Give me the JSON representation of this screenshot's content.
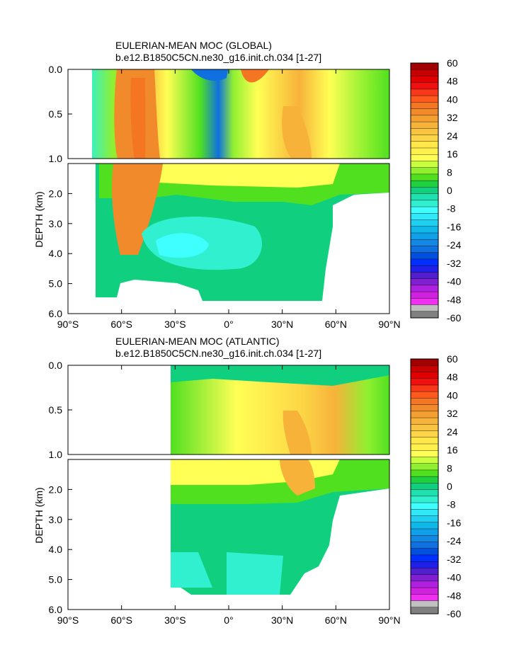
{
  "chart_data": [
    {
      "type": "heatmap",
      "title": "EULERIAN-MEAN MOC (GLOBAL)",
      "subtitle": "b.e12.B1850C5CN.ne30_g16.init.ch.034 [1-27]",
      "ylabel": "DEPTH (km)",
      "xlabel": "",
      "x_ticks": [
        "90°S",
        "60°S",
        "30°S",
        "0°",
        "30°N",
        "60°N",
        "90°N"
      ],
      "x_tick_values": [
        -90,
        -60,
        -30,
        0,
        30,
        60,
        90
      ],
      "y_ticks_upper": [
        "0.0",
        "0.5",
        "1.0"
      ],
      "y_tick_values_upper": [
        0,
        0.5,
        1.0
      ],
      "y_ticks_lower": [
        "2.0",
        "3.0",
        "4.0",
        "5.0",
        "6.0"
      ],
      "y_tick_values_lower": [
        2,
        3,
        4,
        5,
        6
      ],
      "xlim": [
        -90,
        90
      ],
      "ylim": [
        6,
        0
      ],
      "ocean_lat_range": [
        -78,
        90
      ],
      "grid": false,
      "legend": "right colorbar"
    },
    {
      "type": "heatmap",
      "title": "EULERIAN-MEAN MOC (ATLANTIC)",
      "subtitle": "b.e12.B1850C5CN.ne30_g16.init.ch.034 [1-27]",
      "ylabel": "DEPTH (km)",
      "xlabel": "",
      "x_ticks": [
        "90°S",
        "60°S",
        "30°S",
        "0°",
        "30°N",
        "60°N",
        "90°N"
      ],
      "x_tick_values": [
        -90,
        -60,
        -30,
        0,
        30,
        60,
        90
      ],
      "y_ticks_upper": [
        "0.0",
        "0.5",
        "1.0"
      ],
      "y_tick_values_upper": [
        0,
        0.5,
        1.0
      ],
      "y_ticks_lower": [
        "2.0",
        "3.0",
        "4.0",
        "5.0",
        "6.0"
      ],
      "y_tick_values_lower": [
        2,
        3,
        4,
        5,
        6
      ],
      "xlim": [
        -90,
        90
      ],
      "ylim": [
        6,
        0
      ],
      "ocean_lat_range": [
        -33,
        90
      ],
      "grid": false,
      "legend": "right colorbar"
    }
  ],
  "colorbar": {
    "labels": [
      "60",
      "48",
      "40",
      "32",
      "24",
      "16",
      "8",
      "0",
      "-8",
      "-16",
      "-24",
      "-32",
      "-40",
      "-48",
      "-60"
    ],
    "colors": [
      "#a00000",
      "#c80000",
      "#e00000",
      "#f01010",
      "#f83818",
      "#ff5a1e",
      "#f47522",
      "#f08a2a",
      "#f4a031",
      "#f7b23a",
      "#f9c441",
      "#fcd646",
      "#ffe84a",
      "#fff04d",
      "#ffff55",
      "#c8ff40",
      "#90f030",
      "#50e020",
      "#20d040",
      "#10d080",
      "#20e0b0",
      "#30f0d0",
      "#40ffff",
      "#30e8f8",
      "#20d0f0",
      "#10b8ea",
      "#10a0e8",
      "#1088e4",
      "#1070e0",
      "#0050e0",
      "#0030ff",
      "#2020e8",
      "#5020d0",
      "#8020d0",
      "#b020e0",
      "#d020e0",
      "#f030f0",
      "#c0c0c0",
      "#808080"
    ]
  }
}
